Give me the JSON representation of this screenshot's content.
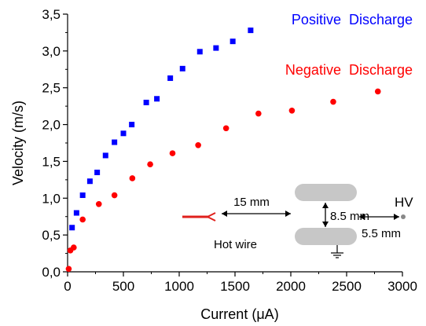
{
  "chart_data": {
    "type": "scatter",
    "title": "",
    "xlabel": "Current   (μA)",
    "ylabel": "Velocity   (m/s)",
    "xlim": [
      0,
      3000
    ],
    "ylim": [
      0,
      3.5
    ],
    "xticks": [
      "0",
      "500",
      "1000",
      "1500",
      "2000",
      "2500",
      "3000"
    ],
    "yticks": [
      "0,0",
      "0,5",
      "1,0",
      "1,5",
      "2,0",
      "2,5",
      "3,0",
      "3,5"
    ],
    "grid": false,
    "series": [
      {
        "name": "Positive  Discharge",
        "color": "#0000ff",
        "marker": "square",
        "x": [
          40,
          80,
          135,
          200,
          265,
          340,
          420,
          500,
          575,
          705,
          800,
          920,
          1030,
          1185,
          1330,
          1480,
          1640
        ],
        "y": [
          0.6,
          0.8,
          1.04,
          1.23,
          1.35,
          1.58,
          1.76,
          1.88,
          2.0,
          2.3,
          2.35,
          2.63,
          2.76,
          2.99,
          3.04,
          3.13,
          3.28
        ]
      },
      {
        "name": "Negative  Discharge",
        "color": "#ff0000",
        "marker": "circle",
        "x": [
          10,
          25,
          55,
          135,
          280,
          420,
          580,
          740,
          940,
          1170,
          1420,
          1710,
          2010,
          2380,
          2780
        ],
        "y": [
          0.04,
          0.29,
          0.33,
          0.71,
          0.92,
          1.04,
          1.27,
          1.46,
          1.61,
          1.72,
          1.95,
          2.15,
          2.19,
          2.31,
          2.45
        ]
      }
    ],
    "inset": {
      "gap_label": "15 mm",
      "electrode_gap_label": "8.5 mm",
      "hv_gap_label": "5.5 mm",
      "hv_label": "HV",
      "hotwire_label": "Hot wire"
    }
  }
}
